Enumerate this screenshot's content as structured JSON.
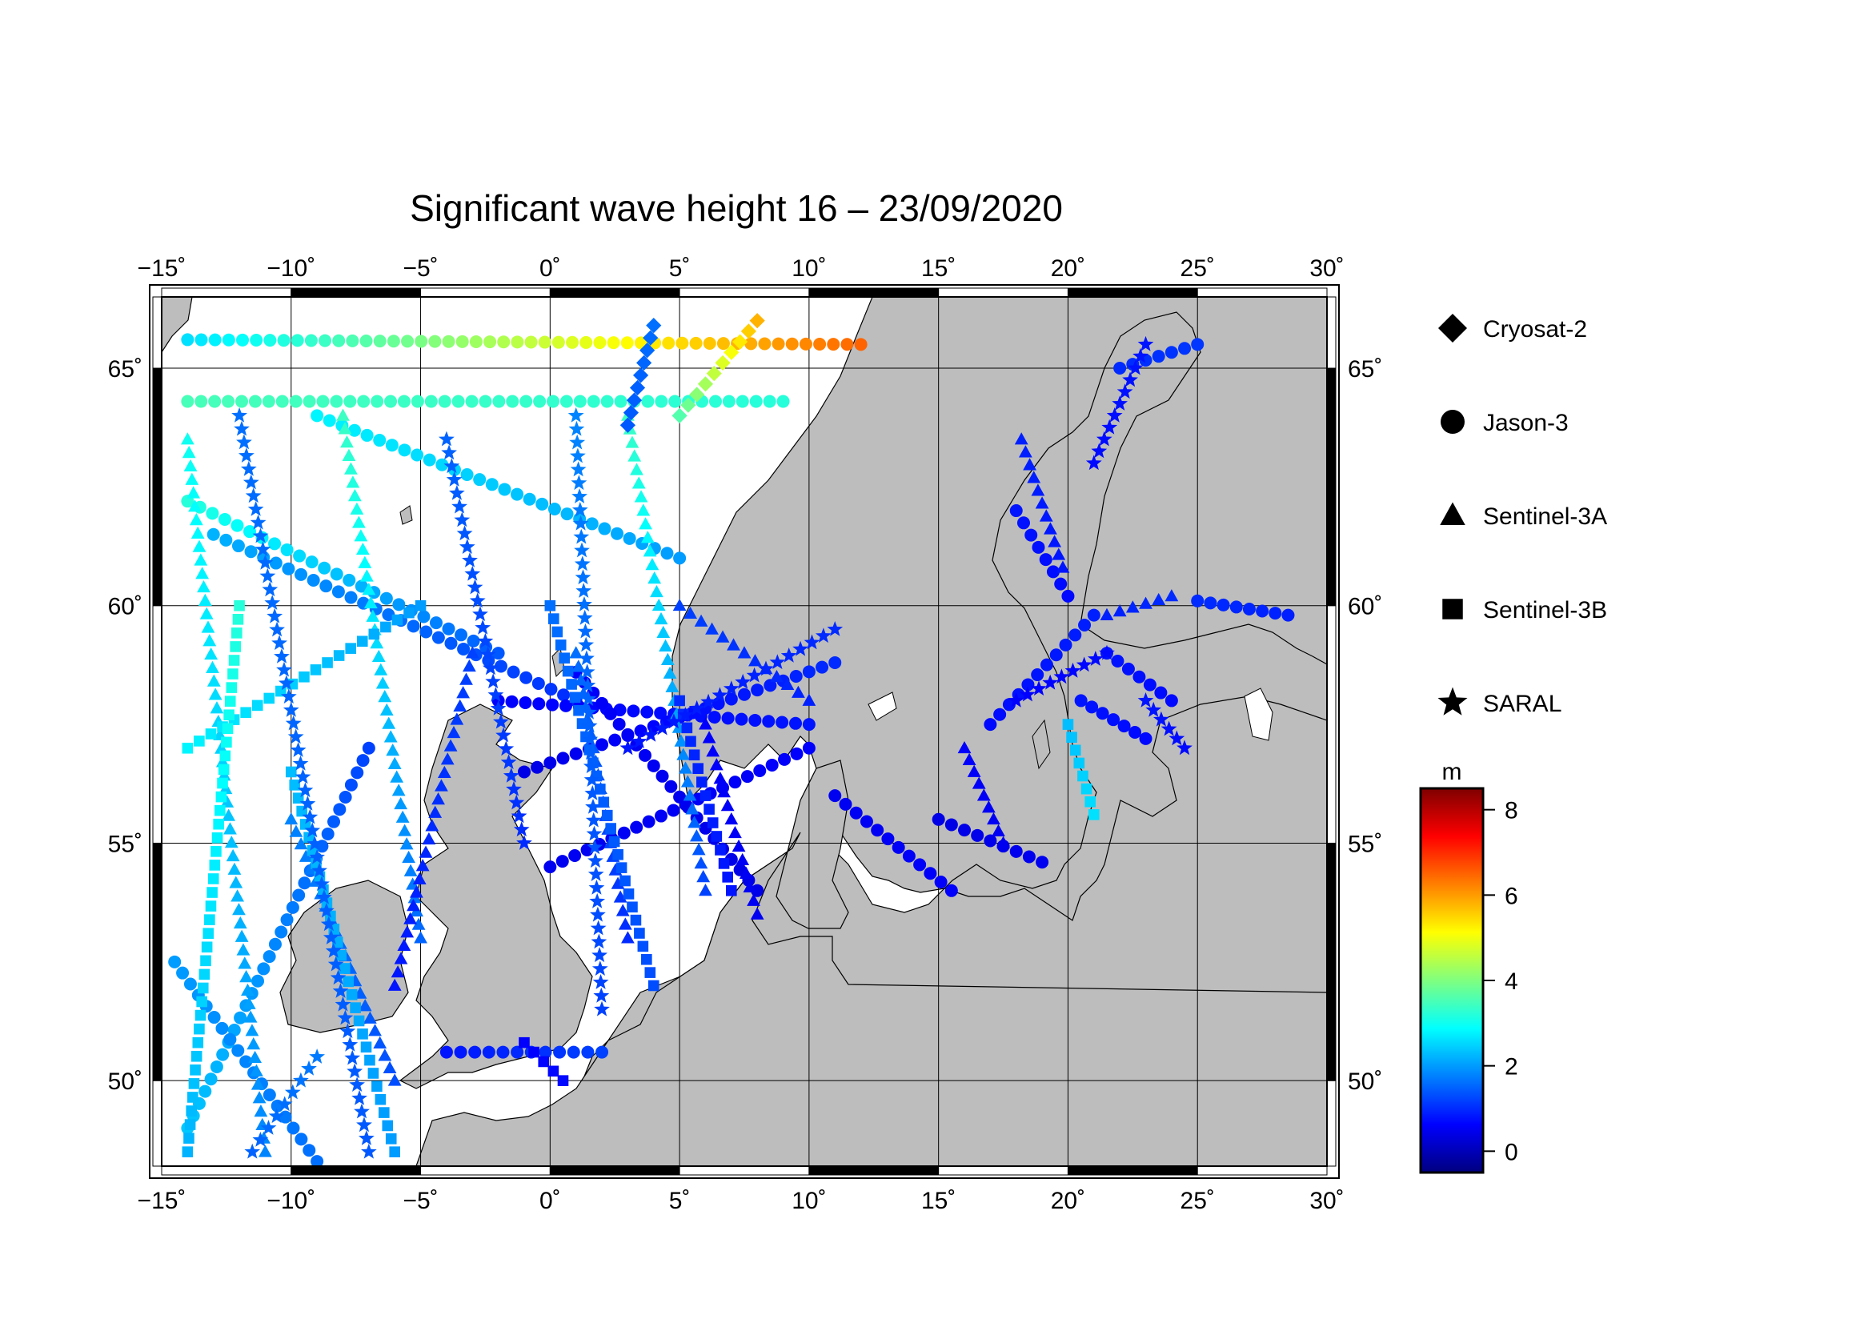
{
  "title": "Significant wave height 16 – 23/09/2020",
  "map": {
    "lon_range": [
      -15,
      30
    ],
    "lat_range": [
      48.2,
      66.5
    ],
    "x_ticks": [
      {
        "value": -15,
        "label": "−15˚"
      },
      {
        "value": -10,
        "label": "−10˚"
      },
      {
        "value": -5,
        "label": "−5˚"
      },
      {
        "value": 0,
        "label": "0˚"
      },
      {
        "value": 5,
        "label": "5˚"
      },
      {
        "value": 10,
        "label": "10˚"
      },
      {
        "value": 15,
        "label": "15˚"
      },
      {
        "value": 20,
        "label": "20˚"
      },
      {
        "value": 25,
        "label": "25˚"
      },
      {
        "value": 30,
        "label": "30˚"
      }
    ],
    "y_ticks": [
      {
        "value": 50,
        "label": "50˚"
      },
      {
        "value": 55,
        "label": "55˚"
      },
      {
        "value": 60,
        "label": "60˚"
      },
      {
        "value": 65,
        "label": "65˚"
      }
    ],
    "grid": true,
    "land_color": "#bdbdbd",
    "sea_color": "#ffffff"
  },
  "legend": {
    "placement": "right",
    "items": [
      {
        "label": "Cryosat-2",
        "symbol": "diamond"
      },
      {
        "label": "Jason-3",
        "symbol": "circle"
      },
      {
        "label": "Sentinel-3A",
        "symbol": "triangle"
      },
      {
        "label": "Sentinel-3B",
        "symbol": "square"
      },
      {
        "label": "SARAL",
        "symbol": "star"
      }
    ]
  },
  "colorbar": {
    "unit": "m",
    "min": -0.5,
    "max": 8.5,
    "ticks": [
      {
        "value": 0,
        "label": "0"
      },
      {
        "value": 2,
        "label": "2"
      },
      {
        "value": 4,
        "label": "4"
      },
      {
        "value": 6,
        "label": "6"
      },
      {
        "value": 8,
        "label": "8"
      }
    ],
    "colormap": "jet"
  },
  "chart_data": {
    "type": "scatter",
    "x_field": "longitude",
    "y_field": "latitude",
    "color_field": "significant wave height (m)",
    "series": [
      {
        "name": "Jason-3",
        "tracks": [
          {
            "from": [
              -14,
              65.6
            ],
            "to": [
              12,
              65.5
            ],
            "swh_from": 2.6,
            "swh_to": 6.5
          },
          {
            "from": [
              -14,
              64.3
            ],
            "to": [
              9,
              64.3
            ],
            "swh_from": 3.5,
            "swh_to": 3.2
          },
          {
            "from": [
              -14,
              62.2
            ],
            "to": [
              -2,
              59.0
            ],
            "swh_from": 3.2,
            "swh_to": 1.4
          },
          {
            "from": [
              -9,
              64.0
            ],
            "to": [
              5,
              61.0
            ],
            "swh_from": 2.8,
            "swh_to": 2.0
          },
          {
            "from": [
              -13,
              61.5
            ],
            "to": [
              1,
              58.0
            ],
            "swh_from": 2.2,
            "swh_to": 1.0
          },
          {
            "from": [
              -2,
              58.0
            ],
            "to": [
              10,
              57.5
            ],
            "swh_from": 0.6,
            "swh_to": 0.8
          },
          {
            "from": [
              -1,
              56.5
            ],
            "to": [
              11,
              58.8
            ],
            "swh_from": 0.4,
            "swh_to": 1.0
          },
          {
            "from": [
              0,
              54.5
            ],
            "to": [
              10,
              57.0
            ],
            "swh_from": 0.5,
            "swh_to": 0.6
          },
          {
            "from": [
              1,
              58.6
            ],
            "to": [
              8,
              54.0
            ],
            "swh_from": 0.6,
            "swh_to": 0.4
          },
          {
            "from": [
              -14,
              49.0
            ],
            "to": [
              -7,
              57.0
            ],
            "swh_from": 2.4,
            "swh_to": 1.2
          },
          {
            "from": [
              -14.5,
              52.5
            ],
            "to": [
              -9,
              48.3
            ],
            "swh_from": 2.0,
            "swh_to": 1.6
          },
          {
            "from": [
              11,
              56.0
            ],
            "to": [
              15.5,
              54.0
            ],
            "swh_from": 0.5,
            "swh_to": 0.6
          },
          {
            "from": [
              15,
              55.5
            ],
            "to": [
              19,
              54.6
            ],
            "swh_from": 0.4,
            "swh_to": 0.5
          },
          {
            "from": [
              17,
              57.5
            ],
            "to": [
              21,
              59.8
            ],
            "swh_from": 0.7,
            "swh_to": 0.9
          },
          {
            "from": [
              18,
              62.0
            ],
            "to": [
              20,
              60.2
            ],
            "swh_from": 0.8,
            "swh_to": 0.7
          },
          {
            "from": [
              20.5,
              58.0
            ],
            "to": [
              23,
              57.2
            ],
            "swh_from": 0.8,
            "swh_to": 0.7
          },
          {
            "from": [
              22,
              65.0
            ],
            "to": [
              25,
              65.5
            ],
            "swh_from": 1.0,
            "swh_to": 1.1
          },
          {
            "from": [
              25,
              60.1
            ],
            "to": [
              28.5,
              59.8
            ],
            "swh_from": 1.0,
            "swh_to": 0.9
          },
          {
            "from": [
              21.5,
              59.0
            ],
            "to": [
              24,
              58.0
            ],
            "swh_from": 0.8,
            "swh_to": 0.7
          },
          {
            "from": [
              -4,
              50.6
            ],
            "to": [
              2,
              50.6
            ],
            "swh_from": 0.8,
            "swh_to": 1.2
          }
        ]
      },
      {
        "name": "Sentinel-3A",
        "tracks": [
          {
            "from": [
              -14,
              63.5
            ],
            "to": [
              -11,
              48.5
            ],
            "swh_from": 3.0,
            "swh_to": 1.8
          },
          {
            "from": [
              -8,
              64.0
            ],
            "to": [
              -5,
              53.0
            ],
            "swh_from": 3.4,
            "swh_to": 1.5
          },
          {
            "from": [
              3,
              64.0
            ],
            "to": [
              6,
              54.0
            ],
            "swh_from": 3.4,
            "swh_to": 1.2
          },
          {
            "from": [
              -3,
              59.0
            ],
            "to": [
              -6,
              52.0
            ],
            "swh_from": 1.2,
            "swh_to": 0.8
          },
          {
            "from": [
              5,
              60.0
            ],
            "to": [
              10,
              58.0
            ],
            "swh_from": 1.2,
            "swh_to": 0.9
          },
          {
            "from": [
              16,
              57.0
            ],
            "to": [
              17.5,
              55.0
            ],
            "swh_from": 0.6,
            "swh_to": 0.5
          },
          {
            "from": [
              21.5,
              59.8
            ],
            "to": [
              24,
              60.2
            ],
            "swh_from": 0.9,
            "swh_to": 1.0
          },
          {
            "from": [
              18.2,
              63.5
            ],
            "to": [
              19.8,
              60.8
            ],
            "swh_from": 0.9,
            "swh_to": 0.8
          },
          {
            "from": [
              -10,
              55.5
            ],
            "to": [
              -6,
              50.0
            ],
            "swh_from": 1.8,
            "swh_to": 1.3
          },
          {
            "from": [
              1,
              59.0
            ],
            "to": [
              3,
              53.0
            ],
            "swh_from": 1.6,
            "swh_to": 1.0
          },
          {
            "from": [
              6,
              57.5
            ],
            "to": [
              8,
              53.5
            ],
            "swh_from": 0.6,
            "swh_to": 0.5
          }
        ]
      },
      {
        "name": "Sentinel-3B",
        "tracks": [
          {
            "from": [
              -14,
              57.0
            ],
            "to": [
              -5,
              60.0
            ],
            "swh_from": 2.8,
            "swh_to": 2.0
          },
          {
            "from": [
              -12,
              60.0
            ],
            "to": [
              -14,
              48.5
            ],
            "swh_from": 3.2,
            "swh_to": 2.2
          },
          {
            "from": [
              -10,
              56.5
            ],
            "to": [
              -6,
              48.5
            ],
            "swh_from": 2.3,
            "swh_to": 2.0
          },
          {
            "from": [
              0,
              60.0
            ],
            "to": [
              4,
              52.0
            ],
            "swh_from": 1.6,
            "swh_to": 1.3
          },
          {
            "from": [
              5,
              58.0
            ],
            "to": [
              7,
              54.0
            ],
            "swh_from": 1.0,
            "swh_to": 0.8
          },
          {
            "from": [
              -1,
              50.8
            ],
            "to": [
              0.5,
              50.0
            ],
            "swh_from": 0.6,
            "swh_to": 0.7
          },
          {
            "from": [
              20,
              57.5
            ],
            "to": [
              21,
              55.6
            ],
            "swh_from": 2.3,
            "swh_to": 2.6
          }
        ]
      },
      {
        "name": "SARAL",
        "tracks": [
          {
            "from": [
              -12,
              64.0
            ],
            "to": [
              -7,
              48.5
            ],
            "swh_from": 1.6,
            "swh_to": 1.4
          },
          {
            "from": [
              -4,
              63.5
            ],
            "to": [
              -1,
              55.0
            ],
            "swh_from": 1.5,
            "swh_to": 1.0
          },
          {
            "from": [
              1,
              64.0
            ],
            "to": [
              2,
              51.5
            ],
            "swh_from": 1.8,
            "swh_to": 1.2
          },
          {
            "from": [
              3,
              57.0
            ],
            "to": [
              11,
              59.5
            ],
            "swh_from": 0.8,
            "swh_to": 1.0
          },
          {
            "from": [
              18,
              58.0
            ],
            "to": [
              21.5,
              59.0
            ],
            "swh_from": 0.6,
            "swh_to": 0.7
          },
          {
            "from": [
              23,
              65.5
            ],
            "to": [
              21,
              63.0
            ],
            "swh_from": 0.8,
            "swh_to": 0.7
          },
          {
            "from": [
              23,
              58.0
            ],
            "to": [
              24.5,
              57.0
            ],
            "swh_from": 0.8,
            "swh_to": 0.7
          },
          {
            "from": [
              -9,
              50.5
            ],
            "to": [
              -11.5,
              48.5
            ],
            "swh_from": 1.7,
            "swh_to": 1.5
          }
        ]
      },
      {
        "name": "Cryosat-2",
        "tracks": [
          {
            "from": [
              4,
              65.9
            ],
            "to": [
              3,
              63.8
            ],
            "swh_from": 1.6,
            "swh_to": 1.4
          },
          {
            "from": [
              8,
              66.0
            ],
            "to": [
              5,
              64.0
            ],
            "swh_from": 5.8,
            "swh_to": 3.6
          }
        ]
      }
    ]
  }
}
